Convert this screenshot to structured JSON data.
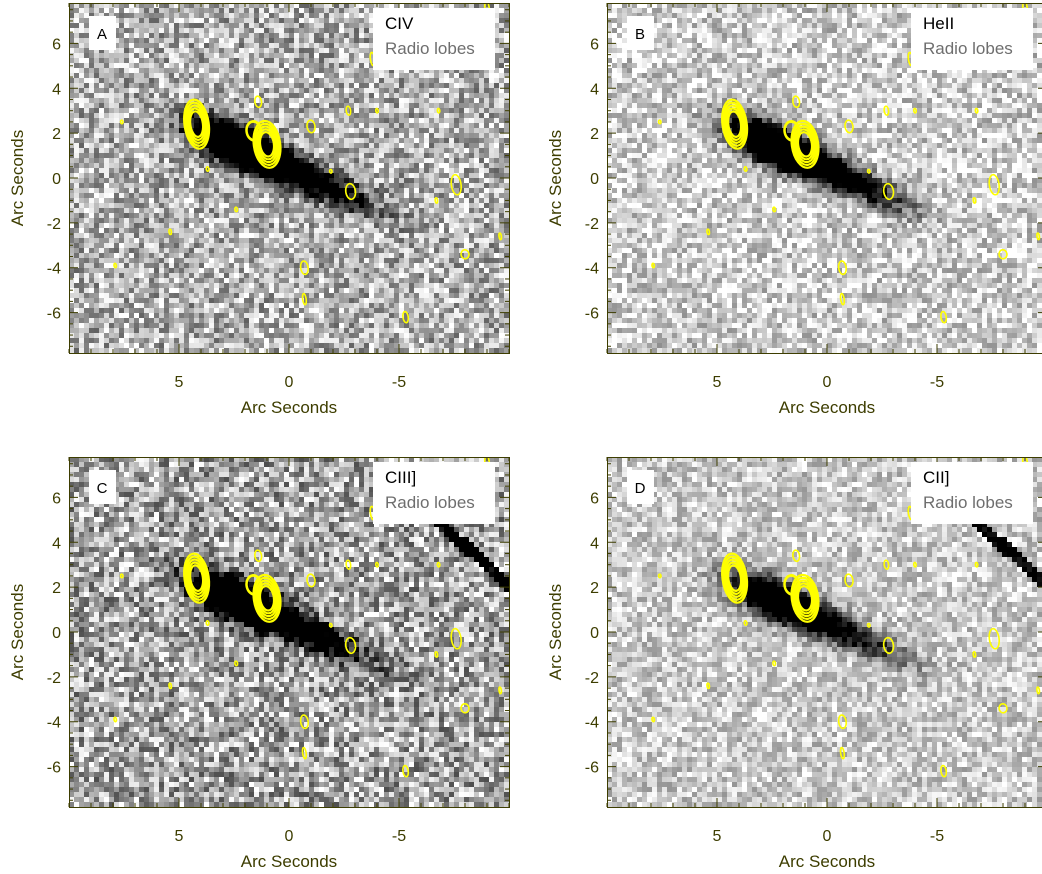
{
  "chart_data": [
    {
      "type": "heatmap",
      "panel_label": "A",
      "line_label": "CIV",
      "overlay_label": "Radio lobes",
      "xlabel": "Arc Seconds",
      "ylabel": "Arc Seconds",
      "xlim": [
        10,
        -10
      ],
      "ylim": [
        -7.8,
        7.8
      ],
      "xticks": [
        5,
        0,
        -5
      ],
      "yticks": [
        6,
        4,
        2,
        0,
        -2,
        -4,
        -6
      ],
      "emission_strength": 1.0,
      "background_noise": 0.32,
      "background_level": 0.3,
      "top_right_dark_strip": false
    },
    {
      "type": "heatmap",
      "panel_label": "B",
      "line_label": "HeII",
      "overlay_label": "Radio lobes",
      "xlabel": "Arc Seconds",
      "ylabel": "Arc Seconds",
      "xlim": [
        10,
        -10
      ],
      "ylim": [
        -7.8,
        7.8
      ],
      "xticks": [
        5,
        0,
        -5
      ],
      "yticks": [
        6,
        4,
        2,
        0,
        -2,
        -4,
        -6
      ],
      "emission_strength": 1.0,
      "background_noise": 0.26,
      "background_level": 0.18,
      "top_right_dark_strip": false
    },
    {
      "type": "heatmap",
      "panel_label": "C",
      "line_label": "CIII]",
      "overlay_label": "Radio lobes",
      "xlabel": "Arc Seconds",
      "ylabel": "Arc Seconds",
      "xlim": [
        10,
        -10
      ],
      "ylim": [
        -7.8,
        7.8
      ],
      "xticks": [
        5,
        0,
        -5
      ],
      "yticks": [
        6,
        4,
        2,
        0,
        -2,
        -4,
        -6
      ],
      "emission_strength": 0.95,
      "background_noise": 0.36,
      "background_level": 0.34,
      "top_right_dark_strip": true
    },
    {
      "type": "heatmap",
      "panel_label": "D",
      "line_label": "CII]",
      "overlay_label": "Radio lobes",
      "xlabel": "Arc Seconds",
      "ylabel": "Arc Seconds",
      "xlim": [
        10,
        -10
      ],
      "ylim": [
        -7.8,
        7.8
      ],
      "xticks": [
        5,
        0,
        -5
      ],
      "yticks": [
        6,
        4,
        2,
        0,
        -2,
        -4,
        -6
      ],
      "emission_strength": 0.7,
      "background_noise": 0.22,
      "background_level": 0.2,
      "top_right_dark_strip": true
    }
  ],
  "radio_contours": [
    {
      "x": 4.2,
      "y": 2.4,
      "rx": 0.55,
      "ry": 1.1,
      "levels": 5,
      "strong": true
    },
    {
      "x": 1.0,
      "y": 1.5,
      "rx": 0.6,
      "ry": 1.05,
      "levels": 5,
      "strong": true
    },
    {
      "x": 1.6,
      "y": 2.1,
      "rx": 0.35,
      "ry": 0.45,
      "levels": 2,
      "strong": false
    },
    {
      "x": 1.4,
      "y": 3.4,
      "rx": 0.15,
      "ry": 0.25,
      "levels": 1,
      "strong": false
    },
    {
      "x": -1.0,
      "y": 2.3,
      "rx": 0.18,
      "ry": 0.28,
      "levels": 1,
      "strong": false
    },
    {
      "x": -2.7,
      "y": 3.0,
      "rx": 0.1,
      "ry": 0.2,
      "levels": 1,
      "strong": false
    },
    {
      "x": -2.8,
      "y": -0.6,
      "rx": 0.22,
      "ry": 0.35,
      "levels": 1,
      "strong": false
    },
    {
      "x": -7.6,
      "y": -0.3,
      "rx": 0.22,
      "ry": 0.45,
      "levels": 1,
      "strong": false
    },
    {
      "x": -8.0,
      "y": -3.4,
      "rx": 0.18,
      "ry": 0.2,
      "levels": 1,
      "strong": false
    },
    {
      "x": -0.7,
      "y": -4.0,
      "rx": 0.17,
      "ry": 0.3,
      "levels": 1,
      "strong": false
    },
    {
      "x": -0.7,
      "y": -5.4,
      "rx": 0.08,
      "ry": 0.25,
      "levels": 1,
      "strong": false
    },
    {
      "x": -5.3,
      "y": -6.2,
      "rx": 0.12,
      "ry": 0.25,
      "levels": 1,
      "strong": false
    },
    {
      "x": -3.8,
      "y": 5.3,
      "rx": 0.1,
      "ry": 0.3,
      "levels": 1,
      "strong": false
    },
    {
      "x": -9.0,
      "y": 7.6,
      "rx": 0.1,
      "ry": 0.25,
      "levels": 1,
      "strong": false
    },
    {
      "x": 3.7,
      "y": 0.4,
      "rx": 0.06,
      "ry": 0.1,
      "levels": 1,
      "strong": false
    },
    {
      "x": 2.4,
      "y": -1.4,
      "rx": 0.06,
      "ry": 0.1,
      "levels": 1,
      "strong": false
    },
    {
      "x": 7.9,
      "y": -3.9,
      "rx": 0.05,
      "ry": 0.1,
      "levels": 1,
      "strong": false
    },
    {
      "x": 5.4,
      "y": -2.4,
      "rx": 0.05,
      "ry": 0.12,
      "levels": 1,
      "strong": false
    },
    {
      "x": -6.7,
      "y": -1.0,
      "rx": 0.05,
      "ry": 0.12,
      "levels": 1,
      "strong": false
    },
    {
      "x": -4.0,
      "y": 3.0,
      "rx": 0.05,
      "ry": 0.1,
      "levels": 1,
      "strong": false
    },
    {
      "x": -6.8,
      "y": 3.0,
      "rx": 0.05,
      "ry": 0.1,
      "levels": 1,
      "strong": false
    },
    {
      "x": -9.6,
      "y": -2.6,
      "rx": 0.05,
      "ry": 0.15,
      "levels": 1,
      "strong": false
    },
    {
      "x": -1.9,
      "y": 0.3,
      "rx": 0.05,
      "ry": 0.08,
      "levels": 1,
      "strong": false
    },
    {
      "x": 7.6,
      "y": 2.5,
      "rx": 0.05,
      "ry": 0.08,
      "levels": 1,
      "strong": false
    }
  ],
  "colors": {
    "contour": "#ffff00",
    "axis": "#3d3d00",
    "legend_primary": "#000000",
    "legend_secondary": "#6e6e6e",
    "panel_bg": "#ffffff"
  }
}
